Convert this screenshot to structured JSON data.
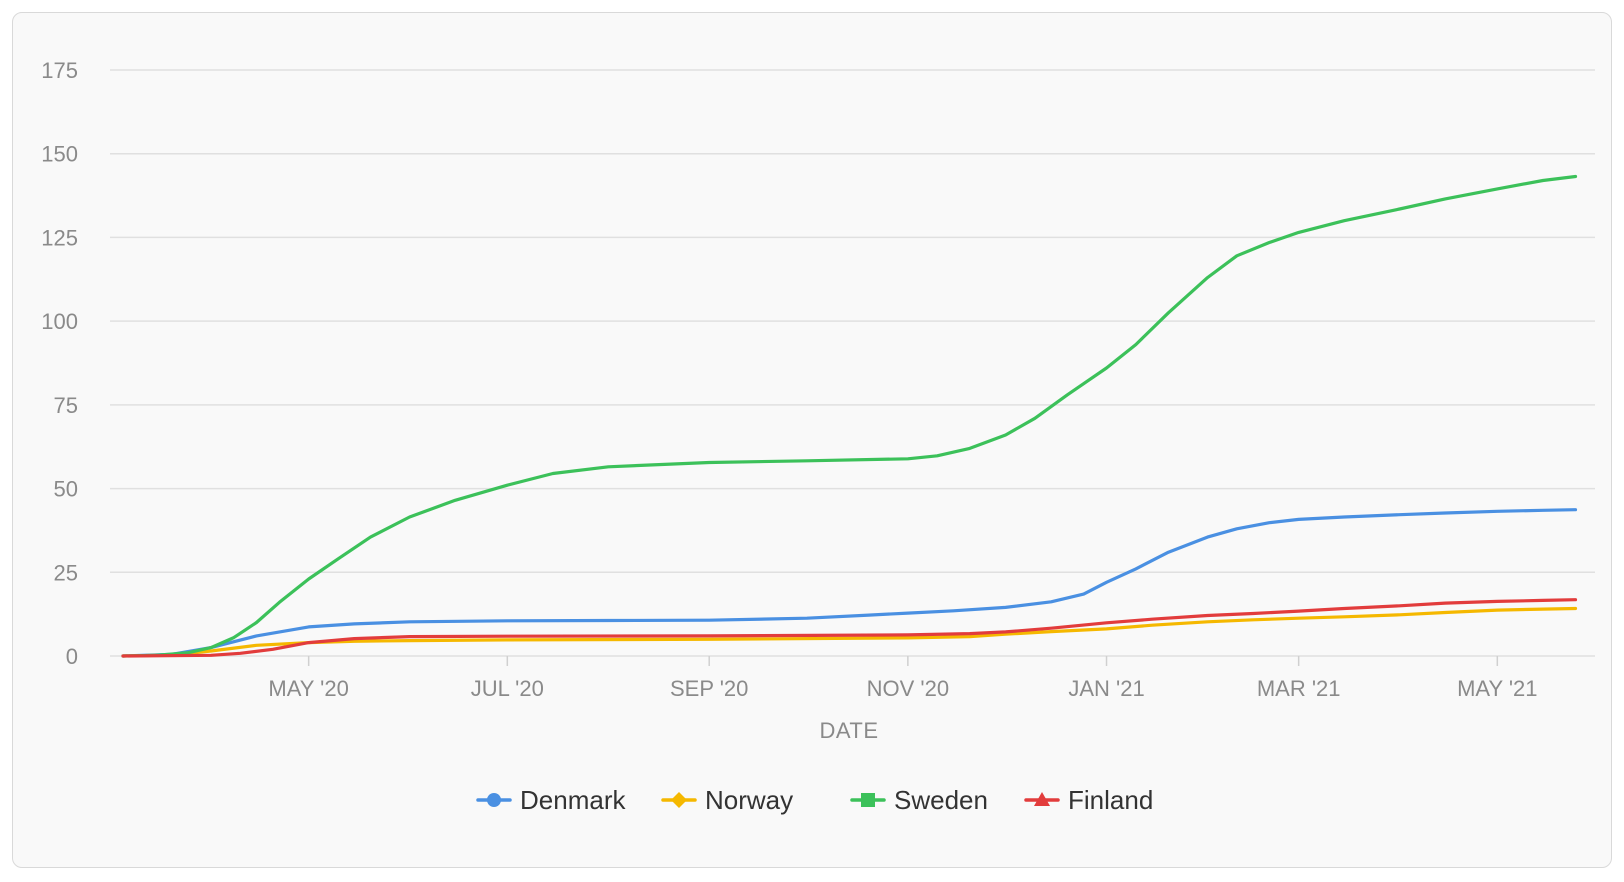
{
  "chart_data": {
    "type": "line",
    "title": "",
    "xlabel": "DATE",
    "ylabel": "",
    "ylim": [
      0,
      175
    ],
    "yticks": [
      0,
      25,
      50,
      75,
      100,
      125,
      150,
      175
    ],
    "xlim": [
      "2020-03-01",
      "2021-05-31"
    ],
    "xticks": [
      {
        "date": "2020-05-01",
        "label": "MAY '20"
      },
      {
        "date": "2020-07-01",
        "label": "JUL '20"
      },
      {
        "date": "2020-09-01",
        "label": "SEP '20"
      },
      {
        "date": "2020-11-01",
        "label": "NOV '20"
      },
      {
        "date": "2021-01-01",
        "label": "JAN '21"
      },
      {
        "date": "2021-03-01",
        "label": "MAR '21"
      },
      {
        "date": "2021-05-01",
        "label": "MAY '21"
      }
    ],
    "grid": true,
    "legend_position": "bottom",
    "series": [
      {
        "name": "Denmark",
        "color": "#4a90e2",
        "marker": "circle",
        "points": [
          [
            "2020-03-05",
            0
          ],
          [
            "2020-03-20",
            0.5
          ],
          [
            "2020-04-01",
            2.5
          ],
          [
            "2020-04-15",
            6
          ],
          [
            "2020-05-01",
            8.7
          ],
          [
            "2020-05-15",
            9.6
          ],
          [
            "2020-06-01",
            10.2
          ],
          [
            "2020-07-01",
            10.5
          ],
          [
            "2020-08-01",
            10.6
          ],
          [
            "2020-09-01",
            10.7
          ],
          [
            "2020-10-01",
            11.3
          ],
          [
            "2020-10-20",
            12.2
          ],
          [
            "2020-11-01",
            12.8
          ],
          [
            "2020-11-15",
            13.5
          ],
          [
            "2020-12-01",
            14.5
          ],
          [
            "2020-12-15",
            16.2
          ],
          [
            "2020-12-25",
            18.5
          ],
          [
            "2021-01-01",
            22
          ],
          [
            "2021-01-10",
            26
          ],
          [
            "2021-01-20",
            31
          ],
          [
            "2021-02-01",
            35.5
          ],
          [
            "2021-02-10",
            38
          ],
          [
            "2021-02-20",
            39.8
          ],
          [
            "2021-03-01",
            40.8
          ],
          [
            "2021-03-15",
            41.5
          ],
          [
            "2021-04-01",
            42.2
          ],
          [
            "2021-04-15",
            42.7
          ],
          [
            "2021-05-01",
            43.2
          ],
          [
            "2021-05-15",
            43.5
          ],
          [
            "2021-05-25",
            43.7
          ]
        ]
      },
      {
        "name": "Norway",
        "color": "#f5b800",
        "marker": "diamond",
        "points": [
          [
            "2020-03-05",
            0
          ],
          [
            "2020-03-20",
            0.3
          ],
          [
            "2020-04-01",
            1.5
          ],
          [
            "2020-04-15",
            3.2
          ],
          [
            "2020-05-01",
            4
          ],
          [
            "2020-05-15",
            4.4
          ],
          [
            "2020-06-01",
            4.6
          ],
          [
            "2020-07-01",
            4.8
          ],
          [
            "2020-09-01",
            5
          ],
          [
            "2020-11-01",
            5.4
          ],
          [
            "2020-11-20",
            5.8
          ],
          [
            "2020-12-01",
            6.5
          ],
          [
            "2020-12-15",
            7.3
          ],
          [
            "2021-01-01",
            8.1
          ],
          [
            "2021-01-15",
            9.2
          ],
          [
            "2021-02-01",
            10.2
          ],
          [
            "2021-02-15",
            10.8
          ],
          [
            "2021-03-01",
            11.3
          ],
          [
            "2021-03-15",
            11.7
          ],
          [
            "2021-04-01",
            12.3
          ],
          [
            "2021-04-15",
            13
          ],
          [
            "2021-05-01",
            13.7
          ],
          [
            "2021-05-15",
            14
          ],
          [
            "2021-05-25",
            14.2
          ]
        ]
      },
      {
        "name": "Sweden",
        "color": "#3cc15a",
        "marker": "square",
        "points": [
          [
            "2020-03-05",
            0
          ],
          [
            "2020-03-15",
            0.2
          ],
          [
            "2020-03-25",
            1
          ],
          [
            "2020-04-01",
            2.5
          ],
          [
            "2020-04-08",
            5.5
          ],
          [
            "2020-04-15",
            10
          ],
          [
            "2020-04-22",
            16
          ],
          [
            "2020-05-01",
            23
          ],
          [
            "2020-05-10",
            29
          ],
          [
            "2020-05-20",
            35.5
          ],
          [
            "2020-06-01",
            41.5
          ],
          [
            "2020-06-15",
            46.5
          ],
          [
            "2020-07-01",
            51
          ],
          [
            "2020-07-15",
            54.5
          ],
          [
            "2020-08-01",
            56.5
          ],
          [
            "2020-09-01",
            57.8
          ],
          [
            "2020-10-01",
            58.3
          ],
          [
            "2020-11-01",
            58.9
          ],
          [
            "2020-11-10",
            59.8
          ],
          [
            "2020-11-20",
            62
          ],
          [
            "2020-12-01",
            66
          ],
          [
            "2020-12-10",
            71
          ],
          [
            "2020-12-20",
            78
          ],
          [
            "2021-01-01",
            86
          ],
          [
            "2021-01-10",
            93
          ],
          [
            "2021-01-20",
            102.5
          ],
          [
            "2021-02-01",
            113
          ],
          [
            "2021-02-10",
            119.5
          ],
          [
            "2021-02-20",
            123.5
          ],
          [
            "2021-03-01",
            126.5
          ],
          [
            "2021-03-15",
            130
          ],
          [
            "2021-04-01",
            133.5
          ],
          [
            "2021-04-15",
            136.5
          ],
          [
            "2021-05-01",
            139.5
          ],
          [
            "2021-05-15",
            142
          ],
          [
            "2021-05-25",
            143.2
          ]
        ]
      },
      {
        "name": "Finland",
        "color": "#e23c3c",
        "marker": "triangle",
        "points": [
          [
            "2020-03-05",
            0
          ],
          [
            "2020-04-01",
            0.2
          ],
          [
            "2020-04-10",
            0.8
          ],
          [
            "2020-04-20",
            2
          ],
          [
            "2020-05-01",
            4
          ],
          [
            "2020-05-15",
            5.2
          ],
          [
            "2020-06-01",
            5.8
          ],
          [
            "2020-07-01",
            5.9
          ],
          [
            "2020-09-01",
            6
          ],
          [
            "2020-11-01",
            6.3
          ],
          [
            "2020-11-20",
            6.7
          ],
          [
            "2020-12-01",
            7.2
          ],
          [
            "2020-12-15",
            8.3
          ],
          [
            "2021-01-01",
            9.9
          ],
          [
            "2021-01-15",
            11
          ],
          [
            "2021-02-01",
            12.1
          ],
          [
            "2021-02-15",
            12.7
          ],
          [
            "2021-03-01",
            13.4
          ],
          [
            "2021-03-15",
            14.2
          ],
          [
            "2021-04-01",
            15
          ],
          [
            "2021-04-15",
            15.8
          ],
          [
            "2021-05-01",
            16.3
          ],
          [
            "2021-05-15",
            16.6
          ],
          [
            "2021-05-25",
            16.8
          ]
        ]
      }
    ]
  }
}
